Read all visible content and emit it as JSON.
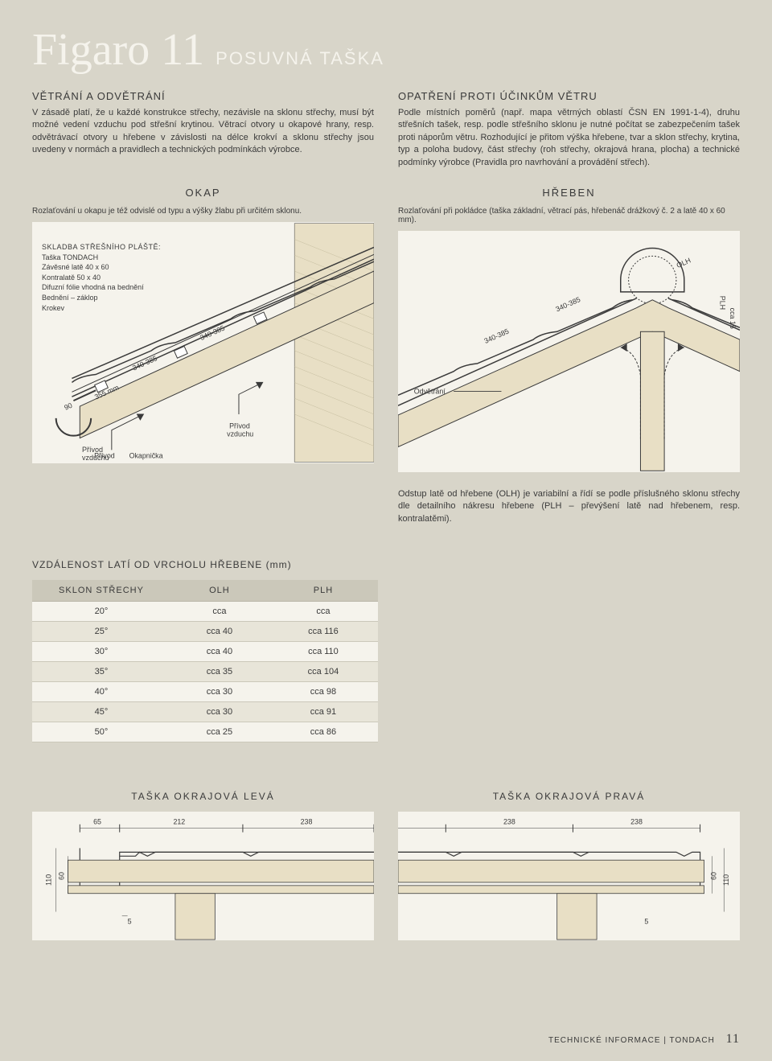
{
  "header": {
    "title": "Figaro 11",
    "subtitle": "POSUVNÁ TAŠKA"
  },
  "left_section": {
    "title": "VĚTRÁNÍ A ODVĚTRÁNÍ",
    "body": "V zásadě platí, že u každé konstrukce střechy, nezávisle na sklonu střechy, musí být možné vedení vzduchu pod střešní krytinou. Větrací otvory u okapové hrany, resp. odvětrávací otvory u hřebene v závislosti na délce krokví a sklonu střechy jsou uvedeny v normách a pravidlech a technických podmínkách výrobce."
  },
  "right_section": {
    "title": "OPATŘENÍ PROTI ÚČINKŮM VĚTRU",
    "body": "Podle místních poměrů (např. mapa větrných oblastí ČSN EN 1991-1-4), druhu střešních tašek, resp. podle střešního sklonu je nutné počítat se zabezpečením tašek proti náporům větru. Rozhodující je přitom výška hřebene, tvar a sklon střechy, krytina, typ a poloha budovy, část střechy (roh střechy, okrajová hrana, plocha) a technické podmínky výrobce (Pravidla pro navrhování a provádění střech)."
  },
  "okap": {
    "title": "OKAP",
    "caption": "Rozlaťování u okapu je též odvislé od typu a výšky žlabu při určitém sklonu.",
    "skladba_title": "SKLADBA STŘEŠNÍHO PLÁŠTĚ:",
    "skladba_items": [
      "Taška TONDACH",
      "Závěsné latě 40 x 60",
      "Kontralatě 50 x 40",
      "Difuzní fólie vhodná na bednění",
      "Bednění – záklop",
      "Krokev"
    ],
    "labels": {
      "privod_vzduchu": "Přívod\nvzduchu",
      "okapnicka": "Okapnička",
      "dim_340_385": "340-385",
      "dim_355": "355 mm",
      "dim_90": "90"
    }
  },
  "hreben": {
    "title": "HŘEBEN",
    "caption": "Rozlaťování při pokládce (taška základní, větrací pás, hřebenáč drážkový č. 2 a latě 40 x 60 mm).",
    "labels": {
      "odvetrani": "Odvětrání",
      "olh": "OLH",
      "plh": "PLH",
      "cca15": "cca 15",
      "dim_340_385": "340-385"
    }
  },
  "note": "Odstup latě od hřebene (OLH) je variabilní a řídí se podle příslušného sklonu střechy dle detailního nákresu hřebene (PLH – převýšení latě nad hřebenem, resp. kontralatěmi).",
  "table": {
    "title": "VZDÁLENOST LATÍ OD VRCHOLU HŘEBENE (mm)",
    "columns": [
      "SKLON STŘECHY",
      "OLH",
      "PLH"
    ],
    "rows": [
      [
        "20°",
        "cca",
        "cca"
      ],
      [
        "25°",
        "cca 40",
        "cca 116"
      ],
      [
        "30°",
        "cca 40",
        "cca 110"
      ],
      [
        "35°",
        "cca 35",
        "cca 104"
      ],
      [
        "40°",
        "cca 30",
        "cca 98"
      ],
      [
        "45°",
        "cca 30",
        "cca 91"
      ],
      [
        "50°",
        "cca 25",
        "cca 86"
      ]
    ]
  },
  "bottom_left": {
    "title": "TAŠKA OKRAJOVÁ LEVÁ",
    "dims": {
      "d65": "65",
      "d212": "212",
      "d238": "238",
      "d110": "110",
      "d60": "60",
      "d5": "5"
    }
  },
  "bottom_right": {
    "title": "TAŠKA OKRAJOVÁ PRAVÁ",
    "dims": {
      "d238a": "238",
      "d238b": "238",
      "d110": "110",
      "d60": "60",
      "d5": "5"
    }
  },
  "footer": {
    "text": "TECHNICKÉ INFORMACE | TONDACH",
    "page": "11"
  },
  "colors": {
    "page_bg": "#d8d5c9",
    "panel_bg": "#f5f3ec",
    "title_color": "#f5f3ec",
    "text_color": "#3a3a3a",
    "table_header_bg": "#cbc8ba",
    "table_alt_bg": "#e8e5d9",
    "wood_fill": "#e8dfc5",
    "line_color": "#3a3a3a"
  }
}
